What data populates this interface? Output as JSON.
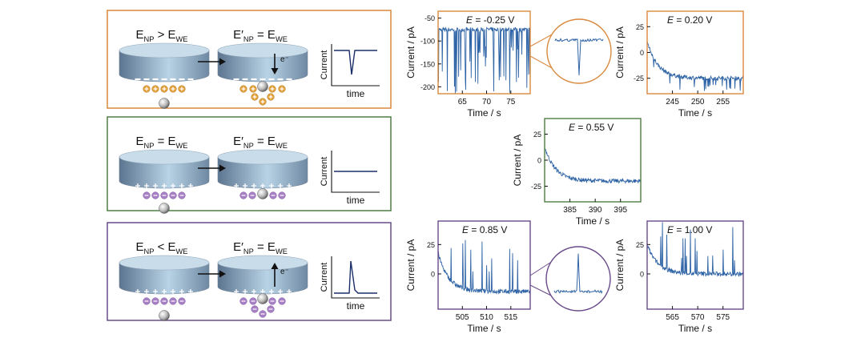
{
  "colors": {
    "orange": "#d9893d",
    "green": "#4f7d45",
    "purple": "#6a4a8a",
    "trace": "#2f64a6",
    "plus_fill": "#e3a13c",
    "minus_fill": "#a77fc4",
    "electrode_top": "#c9dcea",
    "electrode_side_dark": "#5c7590",
    "electrode_side_light": "#b9d3e6"
  },
  "schemes": [
    {
      "left_label": "E NP > E WE",
      "left_sub": [
        "E",
        "NP",
        " > E",
        "WE"
      ],
      "right_sub": [
        "E′",
        "NP",
        " = E",
        "WE"
      ],
      "electron": "e⁻",
      "arrow_dir": "down",
      "response": "dip",
      "ylabel": "Current",
      "xlabel": "time"
    },
    {
      "left_sub": [
        "E",
        "NP",
        " = E",
        "WE"
      ],
      "right_sub": [
        "E′",
        "NP",
        " = E",
        "WE"
      ],
      "electron": "",
      "arrow_dir": "none",
      "response": "flat",
      "ylabel": "Current",
      "xlabel": "time"
    },
    {
      "left_sub": [
        "E",
        "NP",
        " < E",
        "WE"
      ],
      "right_sub": [
        "E′",
        "NP",
        " = E",
        "WE"
      ],
      "electron": "e⁻",
      "arrow_dir": "up",
      "response": "spike",
      "ylabel": "Current",
      "xlabel": "time"
    }
  ],
  "chart_data": [
    {
      "type": "line",
      "annotation": "E = -0.25 V",
      "xlabel": "Time / s",
      "ylabel": "Current / pA",
      "xlim": [
        60,
        79
      ],
      "ylim": [
        -215,
        -35
      ],
      "xticks": [
        65,
        70,
        75
      ],
      "yticks": [
        -50,
        -100,
        -150,
        -200
      ],
      "baseline": -75,
      "trend": "flat",
      "events": "negative spikes",
      "inset": "single negative spike"
    },
    {
      "type": "line",
      "annotation": "E = 0.20 V",
      "xlabel": "Time / s",
      "ylabel": "Current / pA",
      "xlim": [
        240,
        259
      ],
      "ylim": [
        -40,
        40
      ],
      "xticks": [
        245,
        250,
        255
      ],
      "yticks": [
        25,
        0,
        -25
      ],
      "baseline": -25,
      "trend": "decay",
      "events": "small negative spikes"
    },
    {
      "type": "line",
      "annotation": "E = 0.55 V",
      "xlabel": "Time / s",
      "ylabel": "Current / pA",
      "xlim": [
        380,
        399
      ],
      "ylim": [
        -40,
        40
      ],
      "xticks": [
        385,
        390,
        395
      ],
      "yticks": [
        25,
        0,
        -25
      ],
      "baseline": -20,
      "trend": "decay",
      "events": "none"
    },
    {
      "type": "line",
      "annotation": "E = 0.85 V",
      "xlabel": "Time / s",
      "ylabel": "Current / pA",
      "xlim": [
        500,
        519
      ],
      "ylim": [
        -30,
        45
      ],
      "xticks": [
        505,
        510,
        515
      ],
      "yticks": [
        25,
        0
      ],
      "baseline": -15,
      "trend": "decay",
      "events": "positive spikes",
      "inset": "single positive spike"
    },
    {
      "type": "line",
      "annotation": "E = 1.00 V",
      "xlabel": "Time / s",
      "ylabel": "Current / pA",
      "xlim": [
        560,
        579
      ],
      "ylim": [
        -30,
        45
      ],
      "xticks": [
        565,
        570,
        575
      ],
      "yticks": [
        25,
        0
      ],
      "baseline": 0,
      "trend": "decay",
      "events": "positive spikes"
    }
  ]
}
